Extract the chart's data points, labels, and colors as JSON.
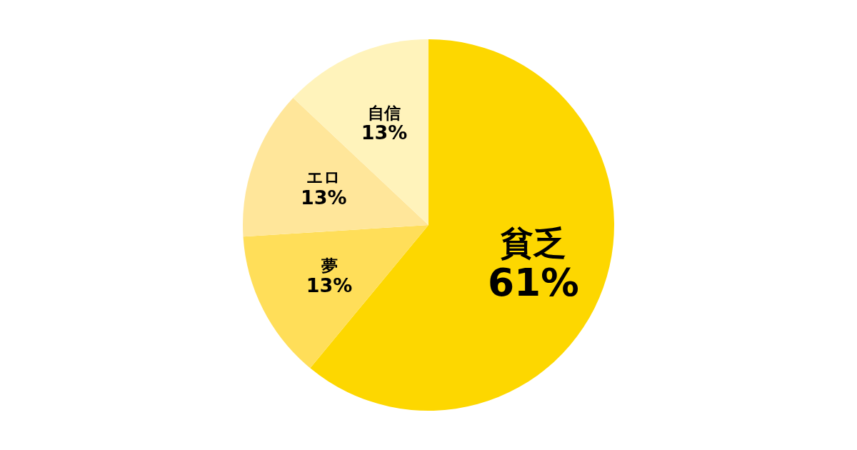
{
  "chart_data": {
    "type": "pie",
    "categories": [
      "貧乏",
      "夢",
      "エロ",
      "自信"
    ],
    "values": [
      61,
      13,
      13,
      13
    ],
    "colors": [
      "#fdd700",
      "#ffde59",
      "#ffe69a",
      "#fff3bb"
    ],
    "value_labels": [
      "61%",
      "13%",
      "13%",
      "13%"
    ]
  }
}
